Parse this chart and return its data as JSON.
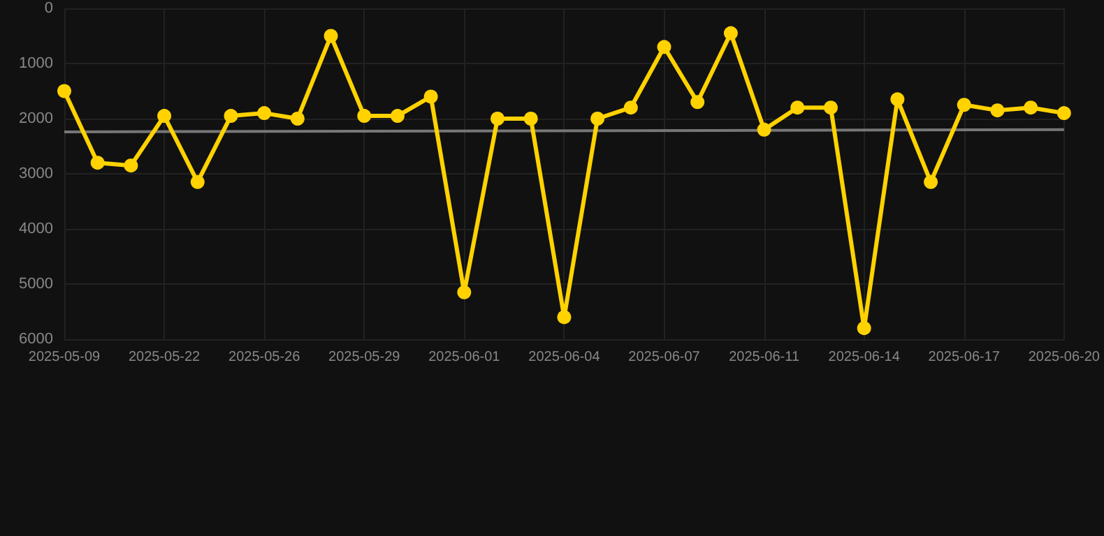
{
  "chart_data": {
    "type": "line",
    "categories": [
      "2025-05-09",
      null,
      null,
      "2025-05-22",
      null,
      null,
      "2025-05-26",
      null,
      null,
      "2025-05-29",
      null,
      null,
      "2025-06-01",
      null,
      null,
      "2025-06-04",
      null,
      null,
      "2025-06-07",
      null,
      null,
      "2025-06-11",
      null,
      null,
      "2025-06-14",
      null,
      null,
      "2025-06-17",
      null,
      null,
      "2025-06-20"
    ],
    "series": [
      {
        "color": "#ffd200",
        "marker": "circle",
        "values": [
          1500,
          2800,
          2850,
          1950,
          3150,
          1950,
          1900,
          2000,
          500,
          1950,
          1950,
          1600,
          5150,
          2000,
          2000,
          5600,
          2000,
          1800,
          700,
          1700,
          450,
          2200,
          1800,
          1800,
          5800,
          1650,
          3150,
          1750,
          1850,
          1800,
          1900
        ]
      },
      {
        "color": "#777777",
        "marker": "none",
        "values": [
          2240,
          null,
          null,
          null,
          null,
          null,
          null,
          null,
          null,
          null,
          null,
          null,
          null,
          null,
          null,
          null,
          null,
          null,
          null,
          null,
          null,
          null,
          null,
          null,
          null,
          null,
          null,
          null,
          null,
          null,
          2200
        ]
      }
    ],
    "ylim": [
      6000,
      0
    ],
    "yticks": [
      0,
      1000,
      2000,
      3000,
      4000,
      5000,
      6000
    ],
    "grid": true
  }
}
